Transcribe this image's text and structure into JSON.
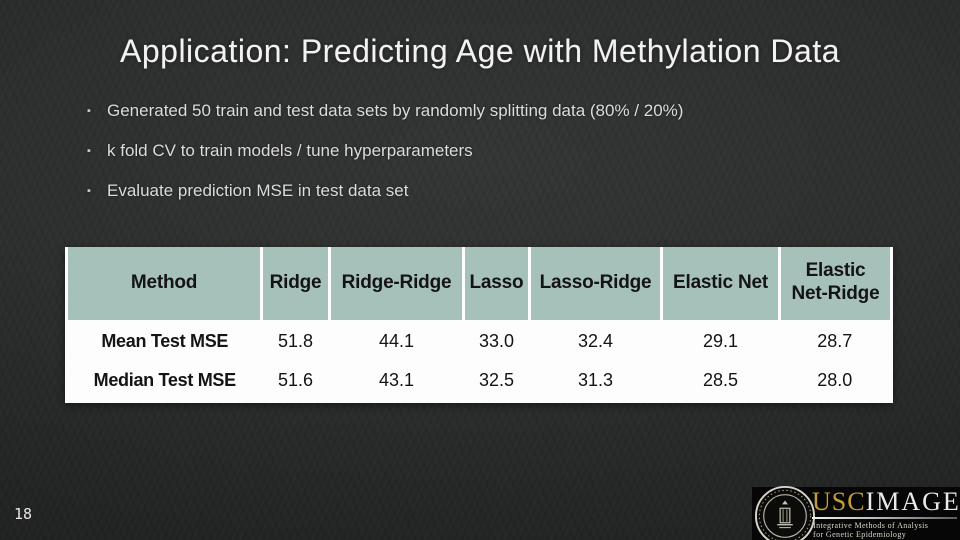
{
  "slide": {
    "title": "Application: Predicting Age with Methylation Data",
    "bullets": [
      "Generated 50 train and test data sets by randomly splitting data (80% / 20%)",
      "k fold CV to train models / tune hyperparameters",
      "Evaluate prediction MSE in test data set"
    ],
    "page_number": "18"
  },
  "chart_data": {
    "type": "table",
    "columns": [
      "Method",
      "Ridge",
      "Ridge-Ridge",
      "Lasso",
      "Lasso-Ridge",
      "Elastic Net",
      "Elastic Net-Ridge"
    ],
    "rows": [
      {
        "label": "Mean Test MSE",
        "values": [
          "51.8",
          "44.1",
          "33.0",
          "32.4",
          "29.1",
          "28.7"
        ]
      },
      {
        "label": "Median Test MSE",
        "values": [
          "51.6",
          "43.1",
          "32.5",
          "31.3",
          "28.5",
          "28.0"
        ]
      }
    ],
    "header_bg": "#a6c0ba",
    "body_bg": "#fdfdfd"
  },
  "logo": {
    "brand_gold_text": "USC",
    "brand_white_text": "IMAGE",
    "tagline_line1": "Integrative Methods of Analysis",
    "tagline_line2": "for Genetic Epidemiology",
    "gold_color": "#c49c3c"
  }
}
